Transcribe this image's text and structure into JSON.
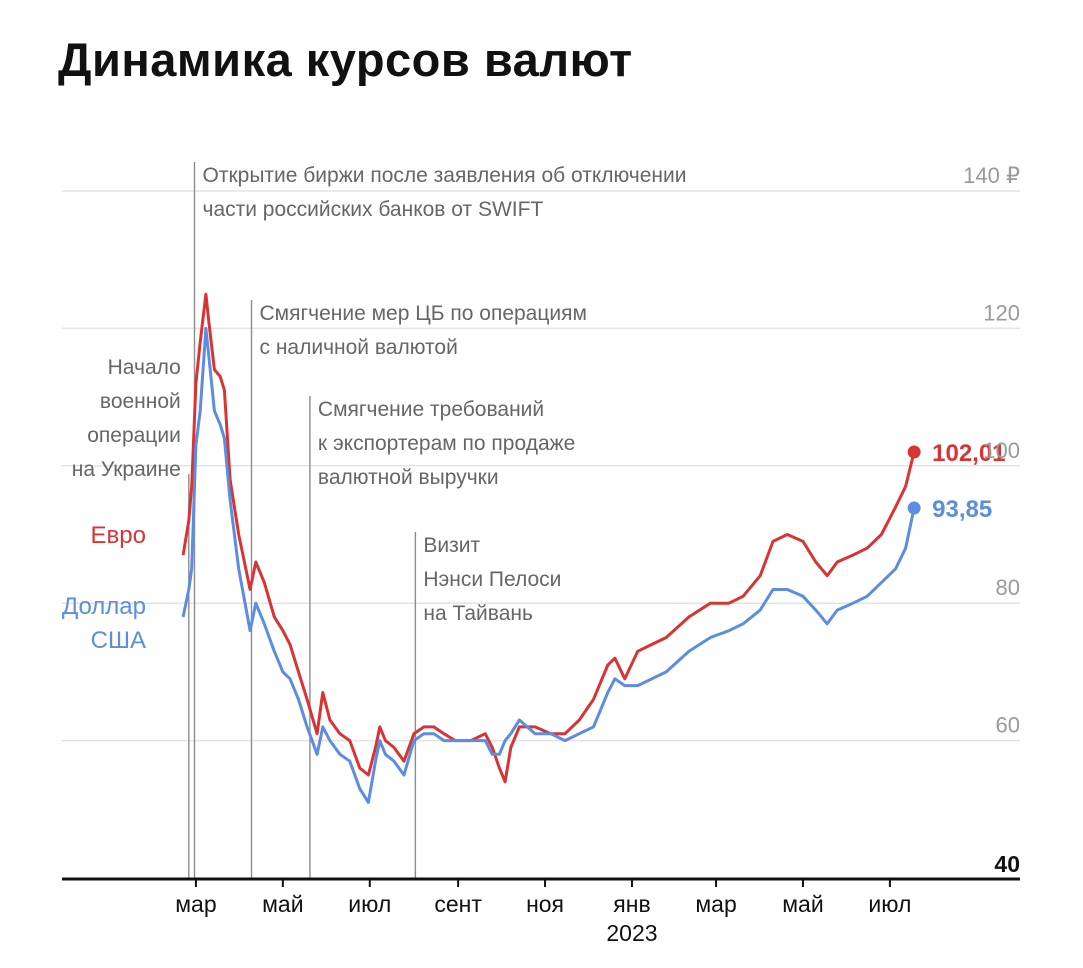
{
  "chart_data": {
    "type": "line",
    "title": "Динамика курсов валют",
    "currency_suffix": "₽",
    "y_ticks": [
      40,
      60,
      80,
      100,
      120,
      140
    ],
    "ylim": [
      40,
      140
    ],
    "x_ticks": [
      {
        "date": "2022-03-01",
        "label": "мар"
      },
      {
        "date": "2022-05-01",
        "label": "май"
      },
      {
        "date": "2022-07-01",
        "label": "июл"
      },
      {
        "date": "2022-09-01",
        "label": "сент"
      },
      {
        "date": "2022-11-01",
        "label": "ноя"
      },
      {
        "date": "2023-01-01",
        "label": "янв",
        "sublabel": "2023"
      },
      {
        "date": "2023-03-01",
        "label": "мар"
      },
      {
        "date": "2023-05-01",
        "label": "май"
      },
      {
        "date": "2023-07-01",
        "label": "июл"
      }
    ],
    "xlim": [
      "2022-02-08",
      "2023-10-01"
    ],
    "series": [
      {
        "name": "Евро",
        "color": "#d93434",
        "end_value": "102,01",
        "points": [
          [
            "2022-02-20",
            87
          ],
          [
            "2022-02-24",
            92
          ],
          [
            "2022-02-26",
            97
          ],
          [
            "2022-03-01",
            112
          ],
          [
            "2022-03-04",
            118
          ],
          [
            "2022-03-08",
            125
          ],
          [
            "2022-03-10",
            121
          ],
          [
            "2022-03-14",
            114
          ],
          [
            "2022-03-18",
            113
          ],
          [
            "2022-03-21",
            111
          ],
          [
            "2022-03-25",
            98
          ],
          [
            "2022-03-31",
            90
          ],
          [
            "2022-04-08",
            82
          ],
          [
            "2022-04-12",
            86
          ],
          [
            "2022-04-18",
            83
          ],
          [
            "2022-04-25",
            78
          ],
          [
            "2022-05-01",
            76
          ],
          [
            "2022-05-06",
            74
          ],
          [
            "2022-05-12",
            70
          ],
          [
            "2022-05-18",
            66
          ],
          [
            "2022-05-25",
            61
          ],
          [
            "2022-05-29",
            67
          ],
          [
            "2022-06-03",
            63
          ],
          [
            "2022-06-10",
            61
          ],
          [
            "2022-06-17",
            60
          ],
          [
            "2022-06-24",
            56
          ],
          [
            "2022-06-30",
            55
          ],
          [
            "2022-07-05",
            59
          ],
          [
            "2022-07-08",
            62
          ],
          [
            "2022-07-12",
            60
          ],
          [
            "2022-07-18",
            59
          ],
          [
            "2022-07-25",
            57
          ],
          [
            "2022-08-01",
            61
          ],
          [
            "2022-08-08",
            62
          ],
          [
            "2022-08-15",
            62
          ],
          [
            "2022-08-22",
            61
          ],
          [
            "2022-08-30",
            60
          ],
          [
            "2022-09-10",
            60
          ],
          [
            "2022-09-20",
            61
          ],
          [
            "2022-09-25",
            59
          ],
          [
            "2022-09-30",
            56
          ],
          [
            "2022-10-04",
            54
          ],
          [
            "2022-10-08",
            59
          ],
          [
            "2022-10-14",
            62
          ],
          [
            "2022-10-25",
            62
          ],
          [
            "2022-11-05",
            61
          ],
          [
            "2022-11-15",
            61
          ],
          [
            "2022-11-25",
            63
          ],
          [
            "2022-12-05",
            66
          ],
          [
            "2022-12-15",
            71
          ],
          [
            "2022-12-20",
            72
          ],
          [
            "2022-12-27",
            69
          ],
          [
            "2023-01-05",
            73
          ],
          [
            "2023-01-15",
            74
          ],
          [
            "2023-01-25",
            75
          ],
          [
            "2023-02-10",
            78
          ],
          [
            "2023-02-25",
            80
          ],
          [
            "2023-03-10",
            80
          ],
          [
            "2023-03-20",
            81
          ],
          [
            "2023-04-01",
            84
          ],
          [
            "2023-04-10",
            89
          ],
          [
            "2023-04-20",
            90
          ],
          [
            "2023-05-01",
            89
          ],
          [
            "2023-05-10",
            86
          ],
          [
            "2023-05-18",
            84
          ],
          [
            "2023-05-25",
            86
          ],
          [
            "2023-06-05",
            87
          ],
          [
            "2023-06-15",
            88
          ],
          [
            "2023-06-25",
            90
          ],
          [
            "2023-07-05",
            94
          ],
          [
            "2023-07-12",
            97
          ],
          [
            "2023-07-18",
            102.01
          ]
        ]
      },
      {
        "name": "Доллар США",
        "color": "#5b8de0",
        "end_value": "93,85",
        "points": [
          [
            "2022-02-20",
            78
          ],
          [
            "2022-02-24",
            82
          ],
          [
            "2022-02-26",
            85
          ],
          [
            "2022-03-01",
            103
          ],
          [
            "2022-03-04",
            108
          ],
          [
            "2022-03-08",
            120
          ],
          [
            "2022-03-10",
            116
          ],
          [
            "2022-03-14",
            108
          ],
          [
            "2022-03-18",
            106
          ],
          [
            "2022-03-21",
            104
          ],
          [
            "2022-03-25",
            95
          ],
          [
            "2022-03-31",
            85
          ],
          [
            "2022-04-08",
            76
          ],
          [
            "2022-04-12",
            80
          ],
          [
            "2022-04-18",
            77
          ],
          [
            "2022-04-25",
            73
          ],
          [
            "2022-05-01",
            70
          ],
          [
            "2022-05-06",
            69
          ],
          [
            "2022-05-12",
            66
          ],
          [
            "2022-05-18",
            62
          ],
          [
            "2022-05-25",
            58
          ],
          [
            "2022-05-29",
            62
          ],
          [
            "2022-06-03",
            60
          ],
          [
            "2022-06-10",
            58
          ],
          [
            "2022-06-17",
            57
          ],
          [
            "2022-06-24",
            53
          ],
          [
            "2022-06-30",
            51
          ],
          [
            "2022-07-05",
            57
          ],
          [
            "2022-07-08",
            60
          ],
          [
            "2022-07-12",
            58
          ],
          [
            "2022-07-18",
            57
          ],
          [
            "2022-07-25",
            55
          ],
          [
            "2022-08-01",
            60
          ],
          [
            "2022-08-08",
            61
          ],
          [
            "2022-08-15",
            61
          ],
          [
            "2022-08-22",
            60
          ],
          [
            "2022-08-30",
            60
          ],
          [
            "2022-09-10",
            60
          ],
          [
            "2022-09-20",
            60
          ],
          [
            "2022-09-25",
            58
          ],
          [
            "2022-09-30",
            58
          ],
          [
            "2022-10-04",
            60
          ],
          [
            "2022-10-08",
            61
          ],
          [
            "2022-10-14",
            63
          ],
          [
            "2022-10-25",
            61
          ],
          [
            "2022-11-05",
            61
          ],
          [
            "2022-11-15",
            60
          ],
          [
            "2022-11-25",
            61
          ],
          [
            "2022-12-05",
            62
          ],
          [
            "2022-12-15",
            67
          ],
          [
            "2022-12-20",
            69
          ],
          [
            "2022-12-27",
            68
          ],
          [
            "2023-01-05",
            68
          ],
          [
            "2023-01-15",
            69
          ],
          [
            "2023-01-25",
            70
          ],
          [
            "2023-02-10",
            73
          ],
          [
            "2023-02-25",
            75
          ],
          [
            "2023-03-10",
            76
          ],
          [
            "2023-03-20",
            77
          ],
          [
            "2023-04-01",
            79
          ],
          [
            "2023-04-10",
            82
          ],
          [
            "2023-04-20",
            82
          ],
          [
            "2023-05-01",
            81
          ],
          [
            "2023-05-10",
            79
          ],
          [
            "2023-05-18",
            77
          ],
          [
            "2023-05-25",
            79
          ],
          [
            "2023-06-05",
            80
          ],
          [
            "2023-06-15",
            81
          ],
          [
            "2023-06-25",
            83
          ],
          [
            "2023-07-05",
            85
          ],
          [
            "2023-07-12",
            88
          ],
          [
            "2023-07-18",
            93.85
          ]
        ]
      }
    ],
    "annotations": [
      {
        "date": "2022-02-24",
        "lines": [
          "Начало",
          "военной",
          "операции",
          "на Украине"
        ]
      },
      {
        "date": "2022-02-28",
        "lines": [
          "Открытие биржи после заявления об отключении",
          "части российских банков от SWIFT"
        ]
      },
      {
        "date": "2022-04-09",
        "lines": [
          "Смягчение мер ЦБ по операциям",
          "с наличной валютой"
        ]
      },
      {
        "date": "2022-05-20",
        "lines": [
          "Смягчение требований",
          "к экспортерам по продаже",
          "валютной выручки"
        ]
      },
      {
        "date": "2022-08-02",
        "lines": [
          "Визит",
          "Нэнси Пелоси",
          "на Тайвань"
        ]
      }
    ],
    "grid": true
  }
}
